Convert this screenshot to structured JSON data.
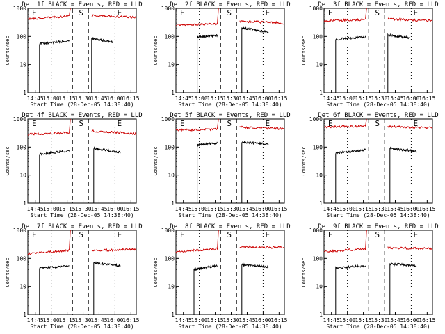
{
  "chart_data": [
    {
      "type": "line",
      "title": "Det 1f BLACK = Events, RED = LLD",
      "xlabel": "Start Time (28-Dec-05 14:38:40)",
      "ylabel": "Counts/sec",
      "x_ticks": [
        "14:45",
        "15:00",
        "15:15",
        "15:30",
        "15:45",
        "16:00",
        "16:15"
      ],
      "y_ticks": [
        "1",
        "10",
        "100",
        "1000"
      ],
      "ylim": [
        1,
        1000
      ],
      "scale": "log",
      "markers": [
        "E",
        "S",
        "E"
      ],
      "series": [
        {
          "color": "#000000",
          "segments": [
            {
              "x0": "14:49",
              "x1": "15:17",
              "y0": 55,
              "y1": 70
            },
            {
              "x0": "15:38",
              "x1": "15:58",
              "y0": 85,
              "y1": 62
            }
          ]
        },
        {
          "color": "#cc0000",
          "segments": [
            {
              "x0": "14:38",
              "x1": "15:17",
              "y0": 420,
              "y1": 520
            },
            {
              "x0": "15:38",
              "x1": "16:20",
              "y0": 560,
              "y1": 470
            }
          ]
        }
      ]
    },
    {
      "type": "line",
      "title": "Det 2f BLACK = Events, RED = LLD",
      "xlabel": "Start Time (28-Dec-05 14:38:40)",
      "ylabel": "Counts/sec",
      "x_ticks": [
        "14:45",
        "15:00",
        "15:15",
        "15:30",
        "15:45",
        "16:00",
        "16:15"
      ],
      "y_ticks": [
        "1",
        "10",
        "100",
        "1000"
      ],
      "ylim": [
        1,
        1000
      ],
      "scale": "log",
      "markers": [
        "E",
        "S",
        "E"
      ],
      "series": [
        {
          "color": "#000000",
          "segments": [
            {
              "x0": "14:58",
              "x1": "15:17",
              "y0": 95,
              "y1": 110
            },
            {
              "x0": "15:40",
              "x1": "16:05",
              "y0": 200,
              "y1": 140
            }
          ]
        },
        {
          "color": "#cc0000",
          "segments": [
            {
              "x0": "14:38",
              "x1": "15:17",
              "y0": 250,
              "y1": 280
            },
            {
              "x0": "15:38",
              "x1": "16:20",
              "y0": 350,
              "y1": 300
            }
          ]
        }
      ]
    },
    {
      "type": "line",
      "title": "Det 3f BLACK = Events, RED = LLD",
      "xlabel": "Start Time (28-Dec-05 14:38:40)",
      "ylabel": "Counts/sec",
      "x_ticks": [
        "14:45",
        "15:00",
        "15:15",
        "15:30",
        "15:45",
        "16:00",
        "16:15"
      ],
      "y_ticks": [
        "1",
        "10",
        "100",
        "1000"
      ],
      "ylim": [
        1,
        1000
      ],
      "scale": "log",
      "markers": [
        "E",
        "S",
        "E"
      ],
      "series": [
        {
          "color": "#000000",
          "segments": [
            {
              "x0": "14:49",
              "x1": "15:17",
              "y0": 80,
              "y1": 95
            },
            {
              "x0": "15:38",
              "x1": "15:58",
              "y0": 110,
              "y1": 90
            }
          ]
        },
        {
          "color": "#cc0000",
          "segments": [
            {
              "x0": "14:38",
              "x1": "15:17",
              "y0": 360,
              "y1": 400
            },
            {
              "x0": "15:38",
              "x1": "16:20",
              "y0": 420,
              "y1": 360
            }
          ]
        }
      ]
    },
    {
      "type": "line",
      "title": "Det 4f BLACK = Events, RED = LLD",
      "xlabel": "Start Time (28-Dec-05 14:38:40)",
      "ylabel": "Counts/sec",
      "x_ticks": [
        "14:45",
        "15:00",
        "15:15",
        "15:30",
        "15:45",
        "16:00",
        "16:15"
      ],
      "y_ticks": [
        "1",
        "10",
        "100",
        "1000"
      ],
      "ylim": [
        1,
        1000
      ],
      "scale": "log",
      "markers": [
        "E",
        "S",
        "E"
      ],
      "series": [
        {
          "color": "#000000",
          "segments": [
            {
              "x0": "14:49",
              "x1": "15:17",
              "y0": 55,
              "y1": 75
            },
            {
              "x0": "15:40",
              "x1": "16:05",
              "y0": 90,
              "y1": 65
            }
          ]
        },
        {
          "color": "#cc0000",
          "segments": [
            {
              "x0": "14:38",
              "x1": "15:17",
              "y0": 290,
              "y1": 330
            },
            {
              "x0": "15:38",
              "x1": "16:20",
              "y0": 380,
              "y1": 300
            }
          ]
        }
      ]
    },
    {
      "type": "line",
      "title": "Det 5f BLACK = Events, RED = LLD",
      "xlabel": "Start Time (28-Dec-05 14:38:40)",
      "ylabel": "Counts/sec",
      "x_ticks": [
        "14:45",
        "15:00",
        "15:15",
        "15:30",
        "15:45",
        "16:00",
        "16:15"
      ],
      "y_ticks": [
        "1",
        "10",
        "100",
        "1000"
      ],
      "ylim": [
        1,
        1000
      ],
      "scale": "log",
      "markers": [
        "E",
        "S",
        "E"
      ],
      "series": [
        {
          "color": "#000000",
          "segments": [
            {
              "x0": "14:58",
              "x1": "15:17",
              "y0": 120,
              "y1": 140
            },
            {
              "x0": "15:40",
              "x1": "16:05",
              "y0": 150,
              "y1": 130
            }
          ]
        },
        {
          "color": "#cc0000",
          "segments": [
            {
              "x0": "14:38",
              "x1": "15:17",
              "y0": 400,
              "y1": 440
            },
            {
              "x0": "15:38",
              "x1": "16:20",
              "y0": 520,
              "y1": 450
            }
          ]
        }
      ]
    },
    {
      "type": "line",
      "title": "Det 6f BLACK = Events, RED = LLD",
      "xlabel": "Start Time (28-Dec-05 14:38:40)",
      "ylabel": "Counts/sec",
      "x_ticks": [
        "14:45",
        "15:00",
        "15:15",
        "15:30",
        "15:45",
        "16:00",
        "16:15"
      ],
      "y_ticks": [
        "1",
        "10",
        "100",
        "1000"
      ],
      "ylim": [
        1,
        1000
      ],
      "scale": "log",
      "markers": [
        "E",
        "S",
        "E"
      ],
      "series": [
        {
          "color": "#000000",
          "segments": [
            {
              "x0": "14:49",
              "x1": "15:17",
              "y0": 60,
              "y1": 80
            },
            {
              "x0": "15:40",
              "x1": "16:05",
              "y0": 90,
              "y1": 70
            }
          ]
        },
        {
          "color": "#cc0000",
          "segments": [
            {
              "x0": "14:38",
              "x1": "15:17",
              "y0": 520,
              "y1": 570
            },
            {
              "x0": "15:38",
              "x1": "16:20",
              "y0": 540,
              "y1": 490
            }
          ]
        }
      ]
    },
    {
      "type": "line",
      "title": "Det 7f BLACK = Events, RED = LLD",
      "xlabel": "Start Time (28-Dec-05 14:38:40)",
      "ylabel": "Counts/sec",
      "x_ticks": [
        "14:45",
        "15:00",
        "15:15",
        "15:30",
        "15:45",
        "16:00",
        "16:15"
      ],
      "y_ticks": [
        "1",
        "10",
        "100",
        "1000"
      ],
      "ylim": [
        1,
        1000
      ],
      "scale": "log",
      "markers": [
        "E",
        "S",
        "E"
      ],
      "series": [
        {
          "color": "#000000",
          "segments": [
            {
              "x0": "14:49",
              "x1": "15:17",
              "y0": 45,
              "y1": 55
            },
            {
              "x0": "15:40",
              "x1": "16:05",
              "y0": 70,
              "y1": 55
            }
          ]
        },
        {
          "color": "#cc0000",
          "segments": [
            {
              "x0": "14:38",
              "x1": "15:17",
              "y0": 150,
              "y1": 190
            },
            {
              "x0": "15:38",
              "x1": "16:20",
              "y0": 190,
              "y1": 210
            }
          ]
        }
      ]
    },
    {
      "type": "line",
      "title": "Det 8f BLACK = Events, RED = LLD",
      "xlabel": "Start Time (28-Dec-05 14:38:40)",
      "ylabel": "Counts/sec",
      "x_ticks": [
        "14:45",
        "15:00",
        "15:15",
        "15:30",
        "15:45",
        "16:00",
        "16:15"
      ],
      "y_ticks": [
        "1",
        "10",
        "100",
        "1000"
      ],
      "ylim": [
        1,
        1000
      ],
      "scale": "log",
      "markers": [
        "E",
        "S",
        "E"
      ],
      "series": [
        {
          "color": "#000000",
          "segments": [
            {
              "x0": "14:55",
              "x1": "15:17",
              "y0": 40,
              "y1": 55
            },
            {
              "x0": "15:40",
              "x1": "16:05",
              "y0": 60,
              "y1": 50
            }
          ]
        },
        {
          "color": "#cc0000",
          "segments": [
            {
              "x0": "14:38",
              "x1": "15:17",
              "y0": 170,
              "y1": 220
            },
            {
              "x0": "15:38",
              "x1": "16:20",
              "y0": 260,
              "y1": 240
            }
          ]
        }
      ]
    },
    {
      "type": "line",
      "title": "Det 9f BLACK = Events, RED = LLD",
      "xlabel": "Start Time (28-Dec-05 14:38:40)",
      "ylabel": "Counts/sec",
      "x_ticks": [
        "14:45",
        "15:00",
        "15:15",
        "15:30",
        "15:45",
        "16:00",
        "16:15"
      ],
      "y_ticks": [
        "1",
        "10",
        "100",
        "1000"
      ],
      "ylim": [
        1,
        1000
      ],
      "scale": "log",
      "markers": [
        "E",
        "S",
        "E"
      ],
      "series": [
        {
          "color": "#000000",
          "segments": [
            {
              "x0": "14:49",
              "x1": "15:17",
              "y0": 45,
              "y1": 55
            },
            {
              "x0": "15:40",
              "x1": "16:05",
              "y0": 65,
              "y1": 55
            }
          ]
        },
        {
          "color": "#cc0000",
          "segments": [
            {
              "x0": "14:38",
              "x1": "15:17",
              "y0": 170,
              "y1": 220
            },
            {
              "x0": "15:38",
              "x1": "16:20",
              "y0": 240,
              "y1": 220
            }
          ]
        }
      ]
    }
  ]
}
